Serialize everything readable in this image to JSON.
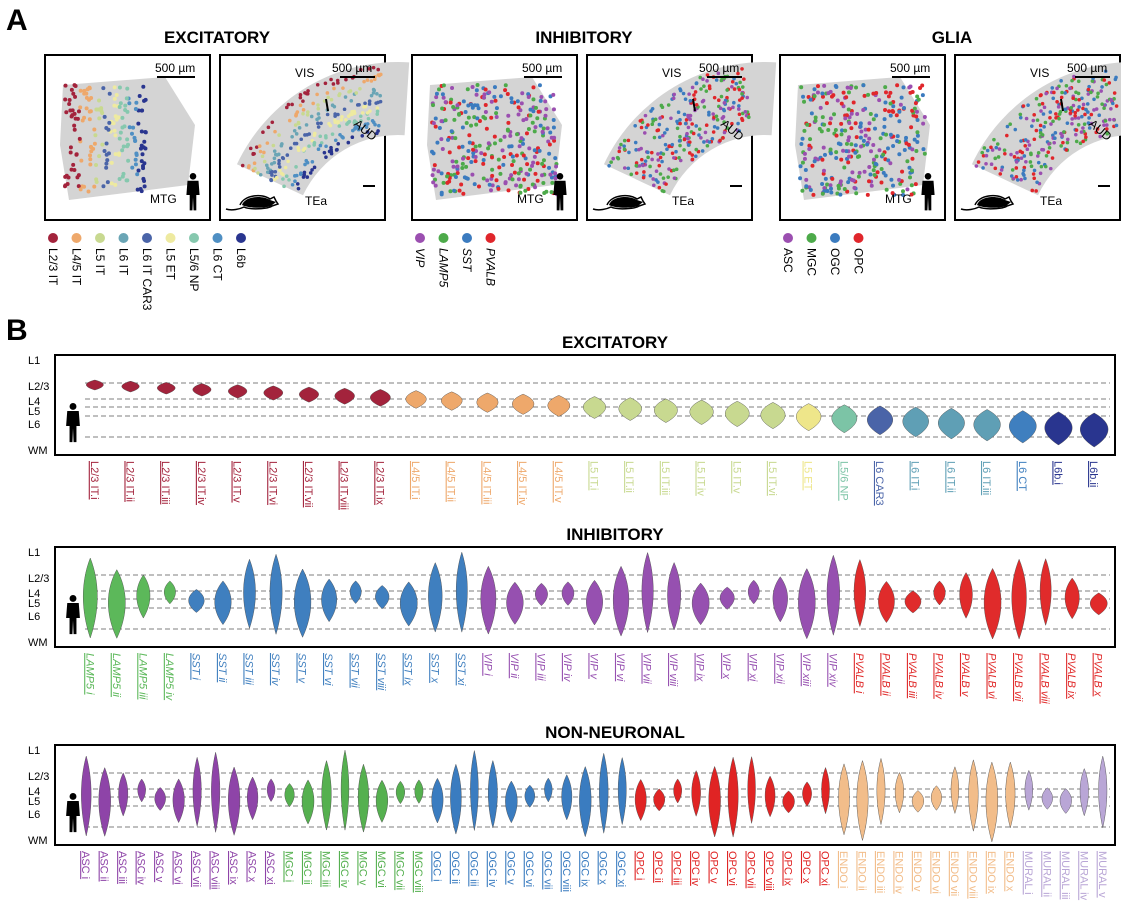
{
  "panel_a": {
    "label": "A",
    "groups": [
      {
        "title": "EXCITATORY",
        "scale_bar": "500 µm",
        "human_region": "MTG",
        "mouse_regions": [
          "VIS",
          "AUD",
          "TEa"
        ],
        "italic": false,
        "legend": [
          {
            "name": "L2/3 IT",
            "color": "#a3233c"
          },
          {
            "name": "L4/5 IT",
            "color": "#eea86b"
          },
          {
            "name": "L5 IT",
            "color": "#c8d990"
          },
          {
            "name": "L6 IT",
            "color": "#6aa5b5"
          },
          {
            "name": "L6 IT CAR3",
            "color": "#4a64a8"
          },
          {
            "name": "L5 ET",
            "color": "#eeeaa0"
          },
          {
            "name": "L5/6 NP",
            "color": "#86c8ae"
          },
          {
            "name": "L6 CT",
            "color": "#4f8fc3"
          },
          {
            "name": "L6b",
            "color": "#29358f"
          }
        ]
      },
      {
        "title": "INHIBITORY",
        "scale_bar": "500 µm",
        "human_region": "MTG",
        "mouse_regions": [
          "VIS",
          "AUD",
          "TEa"
        ],
        "italic": true,
        "legend": [
          {
            "name": "VIP",
            "color": "#9b4fb0"
          },
          {
            "name": "LAMP5",
            "color": "#4daa4a"
          },
          {
            "name": "SST",
            "color": "#3b7bbf"
          },
          {
            "name": "PVALB",
            "color": "#e0262b"
          }
        ]
      },
      {
        "title": "GLIA",
        "scale_bar": "500 µm",
        "human_region": "MTG",
        "mouse_regions": [
          "VIS",
          "AUD",
          "TEa"
        ],
        "italic": false,
        "legend": [
          {
            "name": "ASC",
            "color": "#9b4fb0"
          },
          {
            "name": "MGC",
            "color": "#4daa4a"
          },
          {
            "name": "OGC",
            "color": "#3b7bbf"
          },
          {
            "name": "OPC",
            "color": "#e0262b"
          }
        ]
      }
    ]
  },
  "panel_b": {
    "label": "B",
    "layers": [
      "L1",
      "L2/3",
      "L4",
      "L5",
      "L6",
      "WM"
    ],
    "sections": [
      {
        "title": "EXCITATORY",
        "groups": [
          {
            "color": "#a3233c",
            "labels": [
              "L2/3 IT.i",
              "L2/3 IT.ii",
              "L2/3 IT.iii",
              "L2/3 IT.iv",
              "L2/3 IT.v",
              "L2/3 IT.vi",
              "L2/3 IT.vii",
              "L2/3 IT.viii",
              "L2/3 IT.ix"
            ]
          },
          {
            "color": "#eea86b",
            "labels": [
              "L4/5 IT.i",
              "L4/5 IT.ii",
              "L4/5 IT.iii",
              "L4/5 IT.iv",
              "L4/5 IT.v"
            ]
          },
          {
            "color": "#c8d990",
            "labels": [
              "L5 IT.i",
              "L5 IT.ii",
              "L5 IT.iii",
              "L5 IT.iv",
              "L5 IT.v",
              "L5 IT.vi"
            ]
          },
          {
            "color": "#eee68a",
            "labels": [
              "L5 ET"
            ]
          },
          {
            "color": "#7cc4a6",
            "labels": [
              "L5/6 NP"
            ]
          },
          {
            "color": "#4a64a8",
            "labels": [
              "L6 CAR3"
            ]
          },
          {
            "color": "#5f9fb5",
            "labels": [
              "L6 IT.i",
              "L6 IT.ii",
              "L6 IT.iii"
            ]
          },
          {
            "color": "#3f7fbf",
            "labels": [
              "L6 CT"
            ]
          },
          {
            "color": "#29358f",
            "labels": [
              "L6b.i",
              "L6b.ii"
            ]
          }
        ]
      },
      {
        "title": "INHIBITORY",
        "groups": [
          {
            "color": "#5cb85a",
            "italic": true,
            "labels": [
              "LAMP5 i",
              "LAMP5 ii",
              "LAMP5 iii",
              "LAMP5 iv"
            ]
          },
          {
            "color": "#3f7fbf",
            "italic": true,
            "labels": [
              "SST i",
              "SST ii",
              "SST iii",
              "SST iv",
              "SST v",
              "SST vi",
              "SST vii",
              "SST viii",
              "SST ix",
              "SST x",
              "SST xi"
            ]
          },
          {
            "color": "#9650b0",
            "italic": true,
            "labels": [
              "VIP i",
              "VIP ii",
              "VIP iii",
              "VIP iv",
              "VIP v",
              "VIP vi",
              "VIP vii",
              "VIP viii",
              "VIP ix",
              "VIP x",
              "VIP xi",
              "VIP xii",
              "VIP xiii",
              "VIP xiv"
            ]
          },
          {
            "color": "#e02b2b",
            "italic": true,
            "labels": [
              "PVALB i",
              "PVALB ii",
              "PVALB iii",
              "PVALB iv",
              "PVALB v",
              "PVALB vi",
              "PVALB vii",
              "PVALB viii",
              "PVALB ix",
              "PVALB x"
            ]
          }
        ]
      },
      {
        "title": "NON-NEURONAL",
        "groups": [
          {
            "color": "#8e44a8",
            "labels": [
              "ASC i",
              "ASC ii",
              "ASC iii",
              "ASC iv",
              "ASC v",
              "ASC vi",
              "ASC vii",
              "ASC viii",
              "ASC ix",
              "ASC x",
              "ASC xi"
            ]
          },
          {
            "color": "#55b04f",
            "labels": [
              "MGC i",
              "MGC ii",
              "MGC iii",
              "MGC iv",
              "MGC v",
              "MGC vi",
              "MGC vii",
              "MGC viii"
            ]
          },
          {
            "color": "#3a7cc0",
            "labels": [
              "OGC i",
              "OGC ii",
              "OGC iii",
              "OGC iv",
              "OGC v",
              "OGC vi",
              "OGC vii",
              "OGC viii",
              "OGC ix",
              "OGC x",
              "OGC xi"
            ]
          },
          {
            "color": "#e02424",
            "labels": [
              "OPC i",
              "OPC ii",
              "OPC iii",
              "OPC iv",
              "OPC v",
              "OPC vi",
              "OPC vii",
              "OPC viii",
              "OPC ix",
              "OPC x",
              "OPC xi"
            ]
          },
          {
            "color": "#f2bd8a",
            "labels": [
              "ENDO i",
              "ENDO ii",
              "ENDO iii",
              "ENDO iv",
              "ENDO v",
              "ENDO vi",
              "ENDO vii",
              "ENDO viii",
              "ENDO ix",
              "ENDO x"
            ]
          },
          {
            "color": "#b9a6d6",
            "labels": [
              "MURAL i",
              "MURAL ii",
              "MURAL iii",
              "MURAL iv",
              "MURAL v"
            ]
          }
        ]
      }
    ]
  }
}
